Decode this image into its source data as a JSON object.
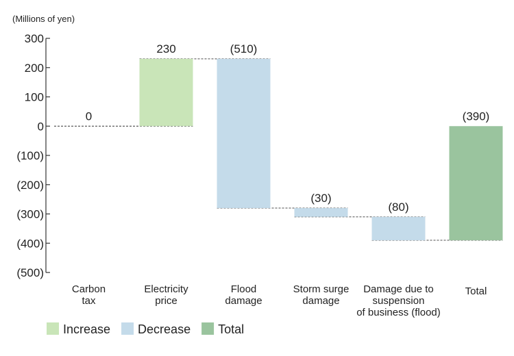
{
  "chart_data": {
    "type": "bar",
    "subtype": "waterfall",
    "unit_label": "(Millions of yen)",
    "ylim": [
      -500,
      300
    ],
    "y_ticks": [
      {
        "value": 300,
        "label": "300"
      },
      {
        "value": 200,
        "label": "200"
      },
      {
        "value": 100,
        "label": "100"
      },
      {
        "value": 0,
        "label": "0"
      },
      {
        "value": -100,
        "label": "(100)"
      },
      {
        "value": -200,
        "label": "(200)"
      },
      {
        "value": -300,
        "label": "(300)"
      },
      {
        "value": -400,
        "label": "(400)"
      },
      {
        "value": -500,
        "label": "(500)"
      }
    ],
    "grid": false,
    "legend_position": "bottom-left",
    "colors": {
      "increase": "#c9e5b8",
      "decrease": "#c4dbea",
      "total": "#9ac49e",
      "connector": "#333333",
      "axis": "#333333"
    },
    "categories": [
      [
        "Carbon",
        "tax"
      ],
      [
        "Electricity",
        "price"
      ],
      [
        "Flood",
        "damage"
      ],
      [
        "Storm surge",
        "damage"
      ],
      [
        "Damage due to",
        "suspension",
        "of business (flood)"
      ],
      [
        "Total"
      ]
    ],
    "bars": [
      {
        "kind": "none",
        "start": 0,
        "end": 0,
        "value": 0,
        "label": "0"
      },
      {
        "kind": "increase",
        "start": 0,
        "end": 230,
        "value": 230,
        "label": "230"
      },
      {
        "kind": "decrease",
        "start": 230,
        "end": -280,
        "value": -510,
        "label": "(510)"
      },
      {
        "kind": "decrease",
        "start": -280,
        "end": -310,
        "value": -30,
        "label": "(30)"
      },
      {
        "kind": "decrease",
        "start": -310,
        "end": -390,
        "value": -80,
        "label": "(80)"
      },
      {
        "kind": "total",
        "start": 0,
        "end": -390,
        "value": -390,
        "label": "(390)"
      }
    ],
    "legend": [
      {
        "key": "increase",
        "label": "Increase"
      },
      {
        "key": "decrease",
        "label": "Decrease"
      },
      {
        "key": "total",
        "label": "Total"
      }
    ]
  }
}
